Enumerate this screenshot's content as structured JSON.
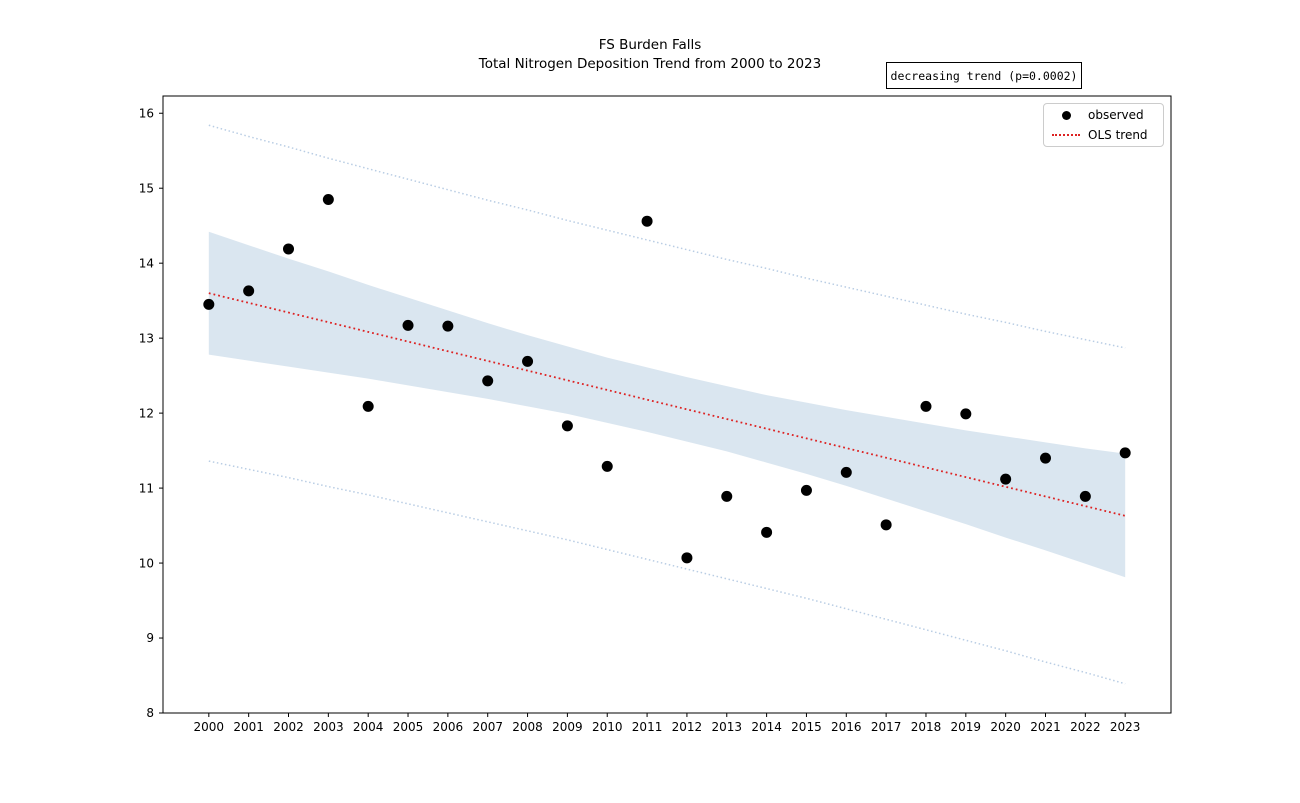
{
  "chart_data": {
    "type": "scatter",
    "title": "FS Burden Falls",
    "subtitle": "Total Nitrogen Deposition Trend from 2000 to 2023",
    "annotation": "decreasing trend (p=0.0002)",
    "legend": [
      {
        "label": "observed",
        "marker": "black-dot"
      },
      {
        "label": "OLS trend",
        "marker": "red-dotted-line"
      }
    ],
    "legend_position": "upper-right",
    "grid": false,
    "x": [
      2000,
      2001,
      2002,
      2003,
      2004,
      2005,
      2006,
      2007,
      2008,
      2009,
      2010,
      2011,
      2012,
      2013,
      2014,
      2015,
      2016,
      2017,
      2018,
      2019,
      2020,
      2021,
      2022,
      2023
    ],
    "observed": [
      13.45,
      13.63,
      14.19,
      14.85,
      12.09,
      13.17,
      13.16,
      12.43,
      12.69,
      11.83,
      11.29,
      14.56,
      10.07,
      10.89,
      10.41,
      10.97,
      11.21,
      10.51,
      12.09,
      11.99,
      11.12,
      11.4,
      10.89,
      11.47
    ],
    "trend": {
      "x": [
        2000,
        2023
      ],
      "y": [
        13.6,
        10.63
      ],
      "slope_per_year": -0.129
    },
    "ci_band": {
      "hi": [
        14.42,
        14.24,
        14.06,
        13.89,
        13.71,
        13.54,
        13.37,
        13.2,
        13.04,
        12.89,
        12.74,
        12.61,
        12.48,
        12.36,
        12.24,
        12.14,
        12.04,
        11.95,
        11.86,
        11.77,
        11.69,
        11.61,
        11.53,
        11.46
      ],
      "lo": [
        12.78,
        12.7,
        12.62,
        12.54,
        12.46,
        12.37,
        12.28,
        12.19,
        12.09,
        11.99,
        11.87,
        11.75,
        11.62,
        11.49,
        11.34,
        11.19,
        11.03,
        10.86,
        10.69,
        10.52,
        10.34,
        10.17,
        9.99,
        9.81
      ]
    },
    "pi": {
      "hi": [
        15.84,
        15.69,
        15.55,
        15.4,
        15.26,
        15.12,
        14.98,
        14.84,
        14.71,
        14.57,
        14.44,
        14.31,
        14.18,
        14.05,
        13.93,
        13.8,
        13.68,
        13.56,
        13.44,
        13.32,
        13.21,
        13.09,
        12.98,
        12.87
      ],
      "lo": [
        11.36,
        11.25,
        11.14,
        11.02,
        10.91,
        10.79,
        10.67,
        10.55,
        10.43,
        10.31,
        10.18,
        10.05,
        9.92,
        9.79,
        9.66,
        9.53,
        9.39,
        9.25,
        9.11,
        8.97,
        8.83,
        8.68,
        8.54,
        8.39
      ]
    },
    "xticks": [
      2000,
      2001,
      2002,
      2003,
      2004,
      2005,
      2006,
      2007,
      2008,
      2009,
      2010,
      2011,
      2012,
      2013,
      2014,
      2015,
      2016,
      2017,
      2018,
      2019,
      2020,
      2021,
      2022,
      2023
    ],
    "yticks": [
      8,
      9,
      10,
      11,
      12,
      13,
      14,
      15,
      16
    ],
    "xlim": [
      1998.85,
      2024.15
    ],
    "ylim": [
      8,
      16.23
    ],
    "style": {
      "observed_color": "#000000",
      "trend_color": "#dd2222",
      "band_color": "#4682b4",
      "band_opacity": 0.2,
      "pi_color": "#b9cde4",
      "axis_color": "#000000",
      "marker_radius": 5.5
    }
  }
}
